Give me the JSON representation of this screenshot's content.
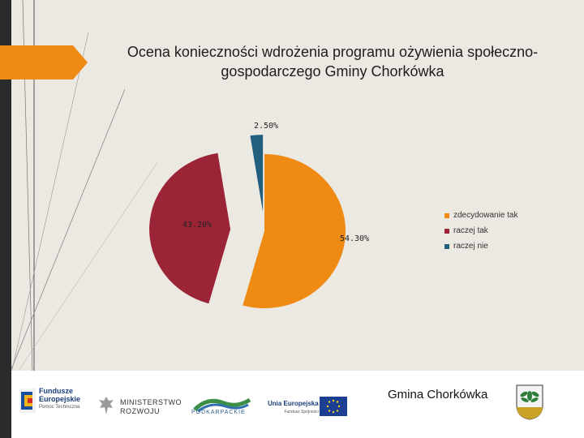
{
  "chart_data": {
    "type": "pie",
    "title": "Ocena konieczności wdrożenia programu ożywienia społeczno-gospodarczego Gminy Chorkówka",
    "categories": [
      "zdecydowanie tak",
      "raczej tak",
      "raczej nie"
    ],
    "values": [
      54.3,
      43.2,
      2.5
    ],
    "data_labels": [
      "54.30%",
      "43.20%",
      "2.50%"
    ],
    "colors": [
      "#ef8a12",
      "#9b2537",
      "#215f7c"
    ],
    "legend_position": "right"
  },
  "footer": {
    "logos": {
      "fundusze": [
        "Fundusze",
        "Europejskie",
        "Pomoc Techniczna"
      ],
      "ministerstwo": [
        "MINISTERSTWO",
        "ROZWOJU"
      ],
      "podkarpackie": "PODKARPACKIE",
      "unia": [
        "Unia Europejska",
        "Fundusz Spójności"
      ]
    },
    "gmina_label": "Gmina Chorkówka",
    "icons": [
      "fundusze-logo",
      "polish-eagle-icon",
      "podkarpackie-logo",
      "eu-flag-icon",
      "gmina-coat-of-arms-icon"
    ]
  }
}
